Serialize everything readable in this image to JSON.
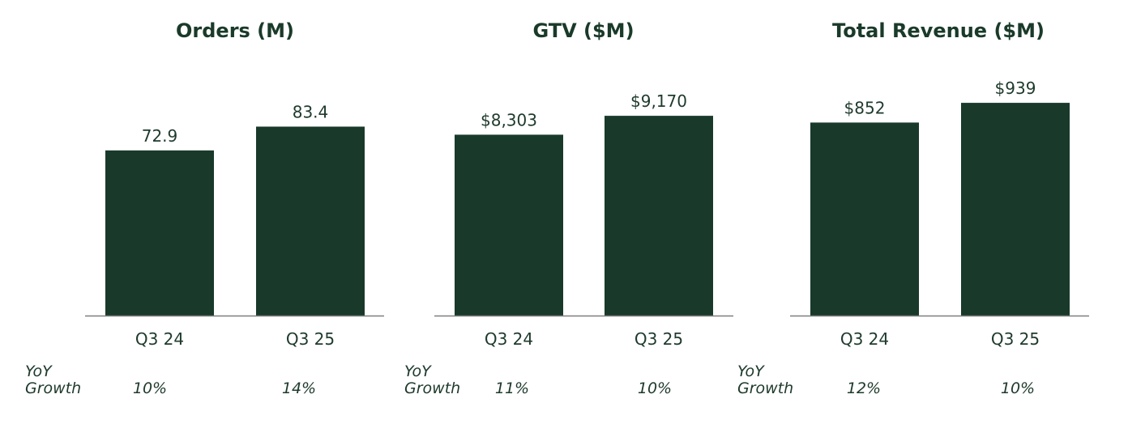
{
  "yoy_label_line1": "YoY",
  "yoy_label_line2": "Growth",
  "colors": {
    "bar": "#193a2b",
    "text": "#1e3a2c",
    "baseline": "#7f7f7f"
  },
  "chart_data": [
    {
      "type": "bar",
      "title": "Orders (M)",
      "categories": [
        "Q3 24",
        "Q3 25"
      ],
      "values": [
        72.9,
        83.4
      ],
      "data_labels": [
        "72.9",
        "83.4"
      ],
      "yoy_growth": [
        "10%",
        "14%"
      ],
      "ylim": [
        0,
        100
      ]
    },
    {
      "type": "bar",
      "title": "GTV ($M)",
      "categories": [
        "Q3 24",
        "Q3 25"
      ],
      "values": [
        8303,
        9170
      ],
      "data_labels": [
        "$8,303",
        "$9,170"
      ],
      "yoy_growth": [
        "11%",
        "10%"
      ],
      "ylim": [
        0,
        10400
      ]
    },
    {
      "type": "bar",
      "title": "Total Revenue ($M)",
      "categories": [
        "Q3 24",
        "Q3 25"
      ],
      "values": [
        852,
        939
      ],
      "data_labels": [
        "$852",
        "$939"
      ],
      "yoy_growth": [
        "12%",
        "10%"
      ],
      "ylim": [
        0,
        1000
      ]
    }
  ]
}
